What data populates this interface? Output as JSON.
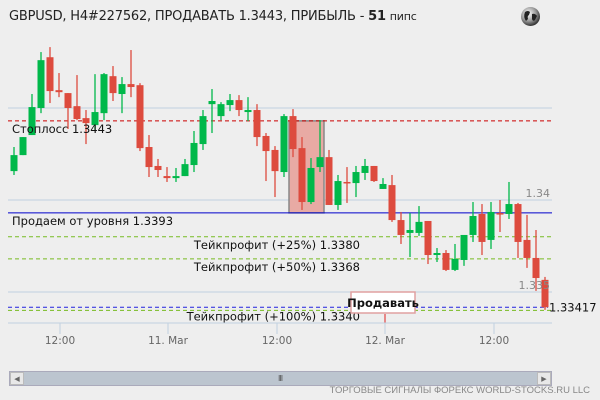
{
  "header": {
    "title_prefix": "GBPUSD, H4#227562, ПРОДАВАТЬ 1.3443, ПРИБЫЛЬ - ",
    "profit_value": "51",
    "profit_unit": "пипс",
    "globe_icon": "globe-icon"
  },
  "chart_data": {
    "type": "candlestick",
    "symbol": "GBPUSD",
    "timeframe": "H4",
    "ylim": [
      1.3335,
      1.3494
    ],
    "grid": true,
    "colors": {
      "up": "#00b84a",
      "down": "#dd4b3e",
      "grid": "#c0d0e0"
    },
    "y_tick_labels": [
      {
        "value": 1.34,
        "label": "1.34"
      },
      {
        "value": 1.335,
        "label": "1.335"
      }
    ],
    "x_tick_labels": [
      "12:00",
      "11. Mar",
      "12:00",
      "12. Mar",
      "12:00"
    ],
    "last_price": "1.33417",
    "candles_ohlc": [
      [
        1.34157,
        1.34288,
        1.34136,
        1.34244
      ],
      [
        1.34244,
        1.34342,
        1.34244,
        1.34342
      ],
      [
        1.34353,
        1.34576,
        1.34353,
        1.34505
      ],
      [
        1.345,
        1.34804,
        1.34472,
        1.3476
      ],
      [
        1.34776,
        1.34831,
        1.34527,
        1.34592
      ],
      [
        1.34597,
        1.3469,
        1.34559,
        1.34586
      ],
      [
        1.34581,
        1.34581,
        1.34386,
        1.345
      ],
      [
        1.3451,
        1.34679,
        1.34434,
        1.3444
      ],
      [
        1.34445,
        1.34489,
        1.34304,
        1.34418
      ],
      [
        1.34407,
        1.34684,
        1.34375,
        1.34478
      ],
      [
        1.34472,
        1.3469,
        1.34434,
        1.34684
      ],
      [
        1.34673,
        1.34728,
        1.34538,
        1.34581
      ],
      [
        1.34576,
        1.34668,
        1.34472,
        1.3463
      ],
      [
        1.3463,
        1.34815,
        1.34559,
        1.34614
      ],
      [
        1.34624,
        1.34635,
        1.34266,
        1.34282
      ],
      [
        1.34288,
        1.34353,
        1.34125,
        1.34179
      ],
      [
        1.34185,
        1.34223,
        1.34125,
        1.34163
      ],
      [
        1.3413,
        1.34179,
        1.34098,
        1.34119
      ],
      [
        1.34119,
        1.34174,
        1.34098,
        1.3413
      ],
      [
        1.3413,
        1.34223,
        1.3413,
        1.34195
      ],
      [
        1.3419,
        1.34375,
        1.34152,
        1.3431
      ],
      [
        1.34304,
        1.34489,
        1.34272,
        1.34456
      ],
      [
        1.34521,
        1.34603,
        1.34364,
        1.34538
      ],
      [
        1.34456,
        1.34532,
        1.34434,
        1.34521
      ],
      [
        1.34516,
        1.34576,
        1.34483,
        1.34543
      ],
      [
        1.34543,
        1.3457,
        1.34456,
        1.34489
      ],
      [
        1.34478,
        1.34559,
        1.34429,
        1.34489
      ],
      [
        1.34489,
        1.34521,
        1.34293,
        1.34342
      ],
      [
        1.34348,
        1.34364,
        1.34103,
        1.34266
      ],
      [
        1.34272,
        1.34293,
        1.34016,
        1.34157
      ],
      [
        1.34152,
        1.34467,
        1.34125,
        1.34456
      ],
      [
        1.34456,
        1.34494,
        1.34233,
        1.34277
      ],
      [
        1.34282,
        1.34342,
        1.33946,
        1.33989
      ],
      [
        1.33989,
        1.34228,
        1.33978,
        1.34174
      ],
      [
        1.34179,
        1.34434,
        1.34152,
        1.34233
      ],
      [
        1.34233,
        1.34272,
        1.33973,
        1.33973
      ],
      [
        1.33973,
        1.34136,
        1.33946,
        1.34103
      ],
      [
        1.34098,
        1.34179,
        1.33984,
        1.34092
      ],
      [
        1.34092,
        1.34185,
        1.34016,
        1.34152
      ],
      [
        1.34147,
        1.34223,
        1.34109,
        1.34185
      ],
      [
        1.34185,
        1.34185,
        1.34098,
        1.34103
      ],
      [
        1.3406,
        1.34119,
        1.3406,
        1.34087
      ],
      [
        1.34081,
        1.34136,
        1.33881,
        1.33891
      ],
      [
        1.33891,
        1.33935,
        1.33761,
        1.3381
      ],
      [
        1.33821,
        1.33929,
        1.3369,
        1.33837
      ],
      [
        1.33821,
        1.33967,
        1.33805,
        1.33881
      ],
      [
        1.33886,
        1.33886,
        1.33652,
        1.33701
      ],
      [
        1.33701,
        1.33739,
        1.33663,
        1.33712
      ],
      [
        1.33712,
        1.33728,
        1.33614,
        1.3362
      ],
      [
        1.3362,
        1.33761,
        1.33614,
        1.3368
      ],
      [
        1.33674,
        1.33761,
        1.33642,
        1.3381
      ],
      [
        1.3381,
        1.33989,
        1.33772,
        1.33913
      ],
      [
        1.33924,
        1.33978,
        1.33701,
        1.33772
      ],
      [
        1.33783,
        1.33989,
        1.33734,
        1.33935
      ],
      [
        1.33929,
        1.34,
        1.33826,
        1.33921
      ],
      [
        1.33924,
        1.34098,
        1.33897,
        1.33978
      ],
      [
        1.33978,
        1.33984,
        1.33685,
        1.33772
      ],
      [
        1.33783,
        1.33919,
        1.33631,
        1.33685
      ],
      [
        1.33685,
        1.33837,
        1.33506,
        1.33576
      ],
      [
        1.33566,
        1.33582,
        1.33403,
        1.33417
      ]
    ],
    "signal_zone": {
      "from_candle": 31,
      "to_candle": 34,
      "price_high": 1.3443,
      "price_low": 1.3393,
      "color": "#e8aaa4"
    },
    "levels": [
      {
        "price": 1.3443,
        "label": "Стоплосс 1.3443",
        "color": "#cc0000",
        "style": "dashed"
      },
      {
        "price": 1.3393,
        "label": "Продаем от уровня 1.3393",
        "color": "#0000cc",
        "style": "solid"
      },
      {
        "price": 1.338,
        "label": "Тейкпрофит (+25%) 1.3380",
        "color": "#77bb22",
        "style": "dashed"
      },
      {
        "price": 1.3368,
        "label": "Тейкпрофит (+50%) 1.3368",
        "color": "#77bb22",
        "style": "dashed"
      },
      {
        "price": 1.334,
        "label": "Тейкпрофит (+100%) 1.3340",
        "color": "#77bb22",
        "style": "dashed"
      }
    ],
    "sell_marker_label": "Продавать"
  },
  "footer": {
    "text": "ТОРГОВЫЕ СИГНАЛЫ ФОРЕКС WORLD-STOCKS.RU LLC"
  }
}
